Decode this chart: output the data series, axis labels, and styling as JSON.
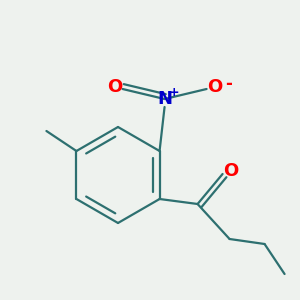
{
  "background_color": "#eef2ee",
  "bond_color": "#2d7070",
  "bond_width": 1.6,
  "atom_colors": {
    "O": "#ff0000",
    "N": "#0000cc"
  },
  "font_size_atom": 13,
  "font_size_charge": 9
}
